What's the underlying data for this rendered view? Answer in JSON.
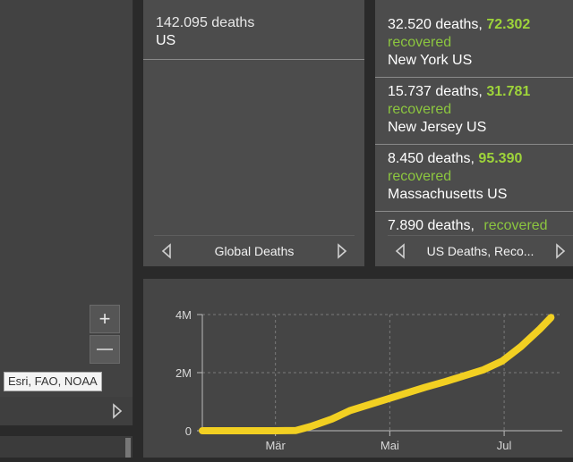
{
  "map": {
    "zoom_in_label": "+",
    "attribution": "Esri, FAO, NOAA"
  },
  "global_panel": {
    "entry": {
      "deaths": "142.095 deaths",
      "place": "US"
    },
    "footer_label": "Global Deaths"
  },
  "us_panel": {
    "entries": [
      {
        "deaths": "32.520 deaths,",
        "recovered": "72.302",
        "recovered_label": "recovered",
        "place": "New York US"
      },
      {
        "deaths": "15.737 deaths,",
        "recovered": "31.781",
        "recovered_label": "recovered",
        "place": "New Jersey US"
      },
      {
        "deaths": "8.450 deaths,",
        "recovered": "95.390",
        "recovered_label": "recovered",
        "place": "Massachusetts US"
      },
      {
        "deaths": "7.890 deaths,",
        "recovered": "",
        "recovered_label": "recovered",
        "place": ""
      }
    ],
    "footer_label": "US Deaths, Reco..."
  },
  "colors": {
    "recovered": "#9ed43a",
    "line": "#f2d022",
    "panel": "#4c4c4c"
  },
  "chart_data": {
    "type": "line",
    "title": "",
    "xlabel": "",
    "ylabel": "",
    "x_ticks": [
      "Mär",
      "Mai",
      "Jul"
    ],
    "y_ticks": [
      "0",
      "2M",
      "4M"
    ],
    "ylim": [
      0,
      4000000
    ],
    "grid": true,
    "series": [
      {
        "name": "",
        "points": [
          [
            "2020-01-22",
            0
          ],
          [
            "2020-02-10",
            0
          ],
          [
            "2020-03-01",
            0
          ],
          [
            "2020-03-12",
            10000
          ],
          [
            "2020-03-20",
            150000
          ],
          [
            "2020-03-31",
            400000
          ],
          [
            "2020-04-10",
            700000
          ],
          [
            "2020-04-20",
            900000
          ],
          [
            "2020-04-30",
            1100000
          ],
          [
            "2020-05-10",
            1300000
          ],
          [
            "2020-05-20",
            1500000
          ],
          [
            "2020-05-31",
            1700000
          ],
          [
            "2020-06-10",
            1900000
          ],
          [
            "2020-06-20",
            2100000
          ],
          [
            "2020-06-30",
            2400000
          ],
          [
            "2020-07-10",
            2900000
          ],
          [
            "2020-07-20",
            3500000
          ],
          [
            "2020-07-26",
            3900000
          ]
        ]
      }
    ]
  }
}
